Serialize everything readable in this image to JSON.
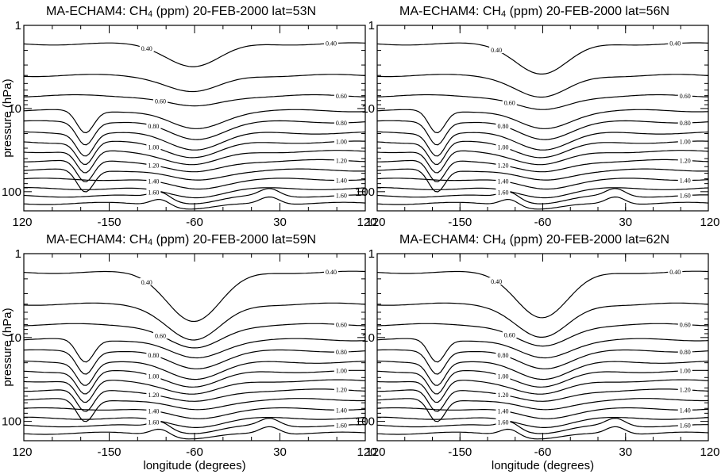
{
  "figure": {
    "ylabel": "pressure (hPa)",
    "xlabel": "longitude (degrees)"
  },
  "colors": {
    "line": "#000000",
    "background": "#ffffff"
  },
  "chart_data": [
    {
      "type": "contour",
      "title_prefix": "MA-ECHAM4: CH",
      "title_subscript": "4",
      "title_suffix": " (ppm) 20-FEB-2000 lat=53N",
      "latitude": "53N",
      "xlabel": "",
      "ylabel": "pressure (hPa)",
      "x_tick_labels": [
        "120",
        "-150",
        "-60",
        "30",
        "120"
      ],
      "y_tick_labels": [
        "1",
        "10",
        "100"
      ],
      "y_scale": "log",
      "y_reversed": true,
      "ylim": [
        1,
        170
      ],
      "contour_labels": [
        "0.40",
        "0.40",
        "0.60",
        "0.60",
        "0.80",
        "0.80",
        "1.00",
        "1.00",
        "1.20",
        "1.20",
        "1.40",
        "1.40",
        "1.60",
        "1.60"
      ],
      "levels_ppm": [
        0.4,
        0.5,
        0.6,
        0.7,
        0.8,
        0.9,
        1.0,
        1.1,
        1.2,
        1.3,
        1.4,
        1.5,
        1.6,
        1.7
      ]
    },
    {
      "type": "contour",
      "title_prefix": "MA-ECHAM4: CH",
      "title_subscript": "4",
      "title_suffix": " (ppm) 20-FEB-2000 lat=56N",
      "latitude": "56N",
      "xlabel": "",
      "ylabel": "",
      "x_tick_labels": [
        "120",
        "-150",
        "-60",
        "30",
        "120"
      ],
      "y_tick_labels": [
        "1",
        "10",
        "100"
      ],
      "y_scale": "log",
      "y_reversed": true,
      "ylim": [
        1,
        170
      ],
      "contour_labels": [
        "0.40",
        "0.40",
        "0.60",
        "0.60",
        "0.80",
        "0.80",
        "1.00",
        "1.00",
        "1.20",
        "1.20",
        "1.40",
        "1.40",
        "1.60",
        "1.60"
      ],
      "levels_ppm": [
        0.4,
        0.5,
        0.6,
        0.7,
        0.8,
        0.9,
        1.0,
        1.1,
        1.2,
        1.3,
        1.4,
        1.5,
        1.6,
        1.7
      ]
    },
    {
      "type": "contour",
      "title_prefix": "MA-ECHAM4: CH",
      "title_subscript": "4",
      "title_suffix": " (ppm) 20-FEB-2000 lat=59N",
      "latitude": "59N",
      "xlabel": "longitude (degrees)",
      "ylabel": "pressure (hPa)",
      "x_tick_labels": [
        "120",
        "-150",
        "-60",
        "30",
        "120"
      ],
      "y_tick_labels": [
        "1",
        "10",
        "100"
      ],
      "y_scale": "log",
      "y_reversed": true,
      "ylim": [
        1,
        170
      ],
      "contour_labels": [
        "0.40",
        "0.40",
        "0.60",
        "0.60",
        "0.80",
        "0.80",
        "1.00",
        "1.00",
        "1.20",
        "1.20",
        "1.40",
        "1.40",
        "1.60",
        "1.60"
      ],
      "levels_ppm": [
        0.4,
        0.5,
        0.6,
        0.7,
        0.8,
        0.9,
        1.0,
        1.1,
        1.2,
        1.3,
        1.4,
        1.5,
        1.6,
        1.7
      ]
    },
    {
      "type": "contour",
      "title_prefix": "MA-ECHAM4: CH",
      "title_subscript": "4",
      "title_suffix": " (ppm) 20-FEB-2000 lat=62N",
      "latitude": "62N",
      "xlabel": "longitude (degrees)",
      "ylabel": "",
      "x_tick_labels": [
        "120",
        "-150",
        "-60",
        "30",
        "120"
      ],
      "y_tick_labels": [
        "1",
        "10",
        "100"
      ],
      "y_scale": "log",
      "y_reversed": true,
      "ylim": [
        1,
        170
      ],
      "contour_labels": [
        "0.40",
        "0.40",
        "0.60",
        "0.60",
        "0.80",
        "0.80",
        "1.00",
        "1.00",
        "1.20",
        "1.20",
        "1.40",
        "1.40",
        "1.60",
        "1.60"
      ],
      "levels_ppm": [
        0.4,
        0.5,
        0.6,
        0.7,
        0.8,
        0.9,
        1.0,
        1.1,
        1.2,
        1.3,
        1.4,
        1.5,
        1.6,
        1.7
      ]
    }
  ]
}
